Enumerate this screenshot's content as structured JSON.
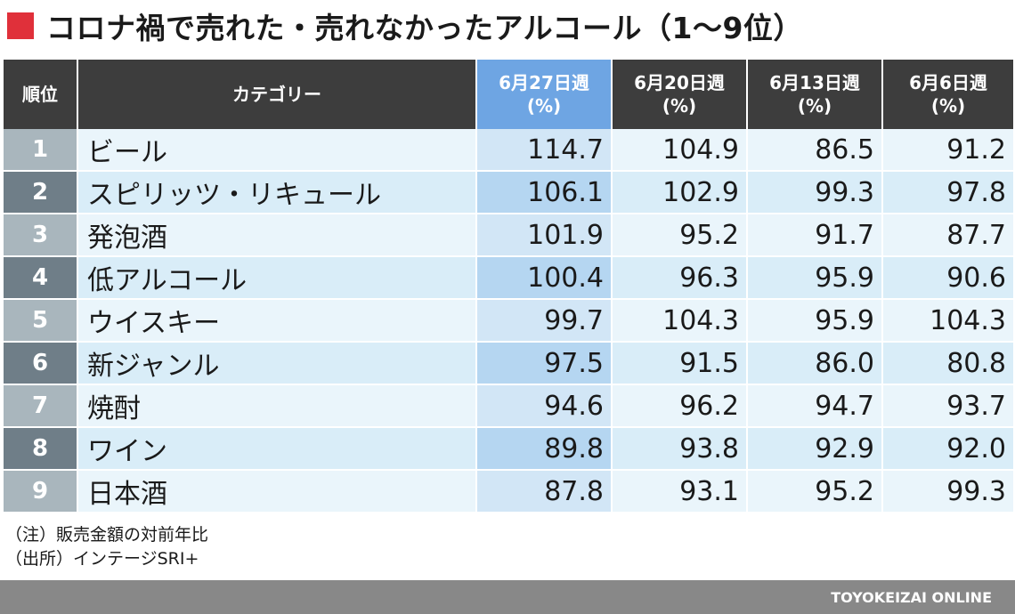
{
  "title": "コロナ禍で売れた・売れなかったアルコール（1〜9位）",
  "chart_data": {
    "type": "table",
    "title": "コロナ禍で売れた・売れなかったアルコール（1〜9位）",
    "columns": [
      {
        "label": "順位",
        "unit": ""
      },
      {
        "label": "カテゴリー",
        "unit": ""
      },
      {
        "label": "6月27日週",
        "unit": "(%)",
        "highlight": true
      },
      {
        "label": "6月20日週",
        "unit": "(%)",
        "highlight": false
      },
      {
        "label": "6月13日週",
        "unit": "(%)",
        "highlight": false
      },
      {
        "label": "6月6日週",
        "unit": "(%)",
        "highlight": false
      }
    ],
    "rows": [
      {
        "rank": "1",
        "category": "ビール",
        "values": [
          "114.7",
          "104.9",
          "86.5",
          "91.2"
        ]
      },
      {
        "rank": "2",
        "category": "スピリッツ・リキュール",
        "values": [
          "106.1",
          "102.9",
          "99.3",
          "97.8"
        ]
      },
      {
        "rank": "3",
        "category": "発泡酒",
        "values": [
          "101.9",
          "95.2",
          "91.7",
          "87.7"
        ]
      },
      {
        "rank": "4",
        "category": "低アルコール",
        "values": [
          "100.4",
          "96.3",
          "95.9",
          "90.6"
        ]
      },
      {
        "rank": "5",
        "category": "ウイスキー",
        "values": [
          "99.7",
          "104.3",
          "95.9",
          "104.3"
        ]
      },
      {
        "rank": "6",
        "category": "新ジャンル",
        "values": [
          "97.5",
          "91.5",
          "86.0",
          "80.8"
        ]
      },
      {
        "rank": "7",
        "category": "焼酎",
        "values": [
          "94.6",
          "96.2",
          "94.7",
          "93.7"
        ]
      },
      {
        "rank": "8",
        "category": "ワイン",
        "values": [
          "89.8",
          "93.8",
          "92.9",
          "92.0"
        ]
      },
      {
        "rank": "9",
        "category": "日本酒",
        "values": [
          "87.8",
          "93.1",
          "95.2",
          "99.3"
        ]
      }
    ]
  },
  "notes": [
    "（注）販売金額の対前年比",
    "（出所）インテージSRI+"
  ],
  "footer": "TOYOKEIZAI ONLINE",
  "colors": {
    "title_mark": "#e0303a",
    "header_bg": "#3d3d3d",
    "header_highlight": "#6ea5e3",
    "footer_bg": "#888888"
  }
}
